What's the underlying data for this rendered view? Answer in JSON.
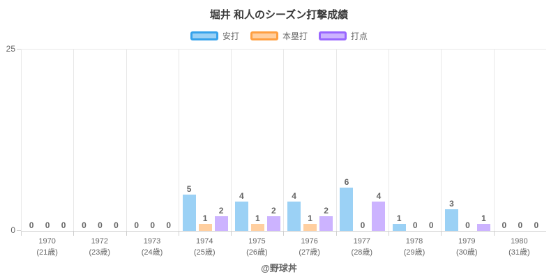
{
  "title": "堀井 和人のシーズン打撃成績",
  "footer": "@野球丼",
  "y_axis": {
    "max_label": "25",
    "min_label": "0"
  },
  "colors": {
    "grid": "#e8e8e8",
    "axis": "#d0d0d0",
    "text": "#666666",
    "title_text": "#3a3a3a",
    "hits_fill": "#9bd1f5",
    "hits_border": "#36a2eb",
    "homeruns_fill": "#ffcfa0",
    "homeruns_border": "#ff9f40",
    "rbi_fill": "#ccb3ff",
    "rbi_border": "#9966ff"
  },
  "chart_data": {
    "type": "bar",
    "title": "堀井 和人のシーズン打撃成績",
    "categories": [
      "1970",
      "1972",
      "1973",
      "1974",
      "1975",
      "1976",
      "1977",
      "1978",
      "1979",
      "1980"
    ],
    "category_sublabels": [
      "(21歳)",
      "(23歳)",
      "(24歳)",
      "(25歳)",
      "(26歳)",
      "(27歳)",
      "(28歳)",
      "(29歳)",
      "(30歳)",
      "(31歳)"
    ],
    "series": [
      {
        "name": "安打",
        "key": "hits",
        "values": [
          0,
          0,
          0,
          5,
          4,
          4,
          6,
          1,
          3,
          0
        ],
        "fill": "#9bd1f5",
        "border": "#36a2eb"
      },
      {
        "name": "本塁打",
        "key": "homeruns",
        "values": [
          0,
          0,
          0,
          1,
          1,
          1,
          0,
          0,
          0,
          0
        ],
        "fill": "#ffcfa0",
        "border": "#ff9f40"
      },
      {
        "name": "打点",
        "key": "rbi",
        "values": [
          0,
          0,
          0,
          2,
          2,
          2,
          4,
          0,
          1,
          0
        ],
        "fill": "#ccb3ff",
        "border": "#9966ff"
      }
    ],
    "ylim": [
      0,
      25
    ],
    "yticks": [
      0,
      25
    ],
    "grid": "vertical category boundaries, top horizontal line, bottom axis line",
    "legend_position": "top",
    "value_labels": "above each bar"
  }
}
